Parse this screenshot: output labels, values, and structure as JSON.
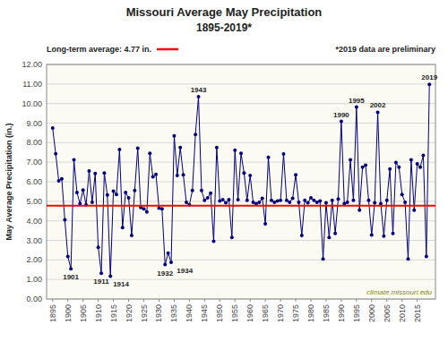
{
  "chart_data": {
    "type": "line",
    "title": "Missouri Average May Precipitation",
    "subtitle": "1895-2019*",
    "y_label": "May Average Precipitation  (in.)",
    "note": "*2019 data are preliminary",
    "source": "climate.missouri.edu",
    "grid": true,
    "xlim": [
      1893,
      2021
    ],
    "xticks": [
      1895,
      1900,
      1905,
      1910,
      1915,
      1920,
      1925,
      1930,
      1935,
      1940,
      1945,
      1950,
      1955,
      1960,
      1965,
      1970,
      1975,
      1980,
      1985,
      1990,
      1995,
      2000,
      2005,
      2010,
      2015
    ],
    "ylim": [
      0.0,
      12.0
    ],
    "yticks": [
      {
        "value": 0.0,
        "label": "0.00"
      },
      {
        "value": 1.0,
        "label": "1.00"
      },
      {
        "value": 2.0,
        "label": "2.00"
      },
      {
        "value": 3.0,
        "label": "3.00"
      },
      {
        "value": 4.0,
        "label": "4.00"
      },
      {
        "value": 5.0,
        "label": "5.00"
      },
      {
        "value": 6.0,
        "label": "6.00"
      },
      {
        "value": 7.0,
        "label": "7.00"
      },
      {
        "value": 8.0,
        "label": "8.00"
      },
      {
        "value": 9.0,
        "label": "9.00"
      },
      {
        "value": 10.0,
        "label": "10.00"
      },
      {
        "value": 11.0,
        "label": "11.00"
      },
      {
        "value": 12.0,
        "label": "12.00"
      }
    ],
    "reference_lines": [
      {
        "value": 4.77,
        "label": "Long-term average: 4.77 in.",
        "color": "#FF0000"
      }
    ],
    "x": [
      1895,
      1896,
      1897,
      1898,
      1899,
      1900,
      1901,
      1902,
      1903,
      1904,
      1905,
      1906,
      1907,
      1908,
      1909,
      1910,
      1911,
      1912,
      1913,
      1914,
      1915,
      1916,
      1917,
      1918,
      1919,
      1920,
      1921,
      1922,
      1923,
      1924,
      1925,
      1926,
      1927,
      1928,
      1929,
      1930,
      1931,
      1932,
      1933,
      1934,
      1935,
      1936,
      1937,
      1938,
      1939,
      1940,
      1941,
      1942,
      1943,
      1944,
      1945,
      1946,
      1947,
      1948,
      1949,
      1950,
      1951,
      1952,
      1953,
      1954,
      1955,
      1956,
      1957,
      1958,
      1959,
      1960,
      1961,
      1962,
      1963,
      1964,
      1965,
      1966,
      1967,
      1968,
      1969,
      1970,
      1971,
      1972,
      1973,
      1974,
      1975,
      1976,
      1977,
      1978,
      1979,
      1980,
      1981,
      1982,
      1983,
      1984,
      1985,
      1986,
      1987,
      1988,
      1989,
      1990,
      1991,
      1992,
      1993,
      1994,
      1995,
      1996,
      1997,
      1998,
      1999,
      2000,
      2001,
      2002,
      2003,
      2004,
      2005,
      2006,
      2007,
      2008,
      2009,
      2010,
      2011,
      2012,
      2013,
      2014,
      2015,
      2016,
      2017,
      2018,
      2019
    ],
    "series": [
      {
        "color": "#000080",
        "marker": "circle",
        "values": [
          8.75,
          7.43,
          6.05,
          6.15,
          4.05,
          2.18,
          1.55,
          7.12,
          5.45,
          4.88,
          5.58,
          4.82,
          6.55,
          4.95,
          6.42,
          2.65,
          1.32,
          6.45,
          5.32,
          1.17,
          5.52,
          5.35,
          7.65,
          3.65,
          5.45,
          5.18,
          3.25,
          5.55,
          7.72,
          4.68,
          4.62,
          4.45,
          7.45,
          6.25,
          6.38,
          4.65,
          4.62,
          1.76,
          2.35,
          1.88,
          8.35,
          6.32,
          7.75,
          6.35,
          4.95,
          4.82,
          5.55,
          8.42,
          10.35,
          5.55,
          5.05,
          5.18,
          5.42,
          2.95,
          7.75,
          5.02,
          5.08,
          4.92,
          5.08,
          3.15,
          7.62,
          5.08,
          7.45,
          6.45,
          5.05,
          6.32,
          4.95,
          4.88,
          4.95,
          5.15,
          3.85,
          7.25,
          5.05,
          4.95,
          5.02,
          5.05,
          7.42,
          5.05,
          4.95,
          5.15,
          6.35,
          4.95,
          3.25,
          5.05,
          4.92,
          5.18,
          5.05,
          4.95,
          5.02,
          2.05,
          4.92,
          3.15,
          5.05,
          3.35,
          5.12,
          9.09,
          4.88,
          4.95,
          7.12,
          5.05,
          9.82,
          4.55,
          6.75,
          6.85,
          5.05,
          3.28,
          4.92,
          9.55,
          4.88,
          3.22,
          5.05,
          6.65,
          3.35,
          6.98,
          6.75,
          5.35,
          4.95,
          2.05,
          7.12,
          4.55,
          6.92,
          6.75,
          7.35,
          2.18,
          10.98
        ]
      }
    ],
    "annotations": [
      {
        "text": "1901",
        "x": 1901,
        "y": 1.55
      },
      {
        "text": "1911",
        "x": 1911,
        "y": 1.32
      },
      {
        "text": "1914",
        "x": 1914,
        "y": 1.17
      },
      {
        "text": "1932",
        "x": 1932,
        "y": 1.76
      },
      {
        "text": "1934",
        "x": 1934,
        "y": 1.88
      },
      {
        "text": "1943",
        "x": 1943,
        "y": 10.35
      },
      {
        "text": "1990",
        "x": 1990,
        "y": 9.09
      },
      {
        "text": "1995",
        "x": 1995,
        "y": 9.82
      },
      {
        "text": "2002",
        "x": 2002,
        "y": 9.55
      },
      {
        "text": "2019",
        "x": 2019,
        "y": 10.98
      }
    ]
  }
}
